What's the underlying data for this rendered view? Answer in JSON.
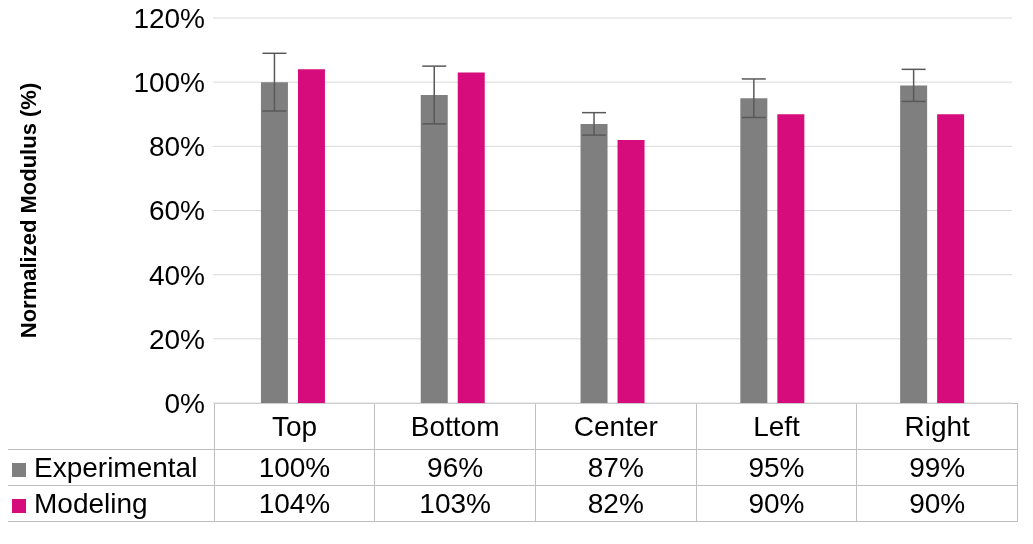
{
  "chart_data": {
    "type": "bar",
    "ylabel": "Normalized Modulus (%)",
    "categories": [
      "Top",
      "Bottom",
      "Center",
      "Left",
      "Right"
    ],
    "series": [
      {
        "name": "Experimental",
        "color": "#7f7f7f",
        "values": [
          100,
          96,
          87,
          95,
          99
        ],
        "errors": [
          9,
          9,
          3.5,
          6,
          5
        ],
        "value_labels": [
          "100%",
          "96%",
          "87%",
          "95%",
          "99%"
        ]
      },
      {
        "name": "Modeling",
        "color": "#d60c7c",
        "values": [
          104,
          103,
          82,
          90,
          90
        ],
        "value_labels": [
          "104%",
          "103%",
          "82%",
          "90%",
          "90%"
        ]
      }
    ],
    "ylim": [
      0,
      120
    ],
    "yticks": [
      {
        "value": 0,
        "label": "0%"
      },
      {
        "value": 20,
        "label": "20%"
      },
      {
        "value": 40,
        "label": "40%"
      },
      {
        "value": 60,
        "label": "60%"
      },
      {
        "value": 80,
        "label": "80%"
      },
      {
        "value": 100,
        "label": "100%"
      },
      {
        "value": 120,
        "label": "120%"
      }
    ],
    "grid": "y",
    "legend": "bottom left"
  }
}
